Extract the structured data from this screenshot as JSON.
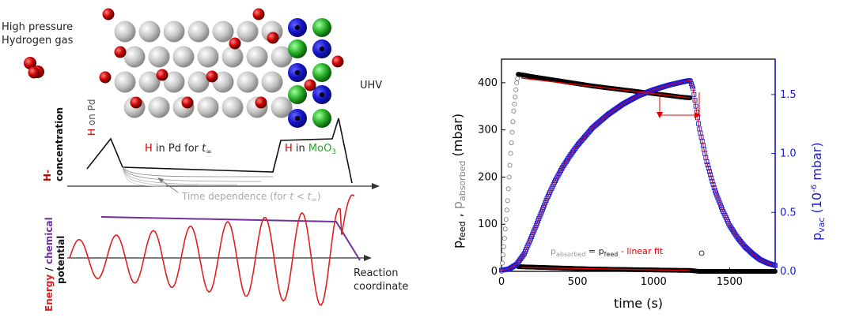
{
  "diagram": {
    "gas_label_line1": "High pressure",
    "gas_label_line2": "Hydrogen gas",
    "uhv_label": "UHV",
    "h_on_pd_h": "H",
    "h_on_pd_rest": " on Pd",
    "h_in_pd_h": "H",
    "h_in_pd_rest": " in Pd for ",
    "t_infinity": "t",
    "t_infinity_sub": "∞",
    "h_in_moo3_h": "H",
    "h_in_moo3_in": " in ",
    "h_in_moo3_moo": "MoO",
    "h_in_moo3_sub": "3",
    "conc_label_line1": "H-",
    "conc_label_line2": "concentration",
    "time_dep_text": "Time dependence (for ",
    "time_dep_t": "t",
    "time_dep_lt": " < ",
    "time_dep_tinf": "t",
    "time_dep_close": ")",
    "energy_word": "Energy",
    "slash": " / ",
    "chemical_word": "chemical",
    "potential_word": "potential",
    "reaction_line1": "Reaction",
    "reaction_line2": "coordinate",
    "colors": {
      "h_red": "#cc0000",
      "pd_grey": "#c8c8c8",
      "mo_blue": "#1414c8",
      "o_green": "#22aa22",
      "purple": "#7030a0",
      "energy_red": "#e02020"
    }
  },
  "chart_data": {
    "type": "scatter",
    "xlabel": "time (s)",
    "ylabel_left_main": "p",
    "ylabel_left_sub1": "feed",
    "ylabel_left_sep": " , ",
    "ylabel_left_p2": "p",
    "ylabel_left_sub2": "absorbed",
    "ylabel_left_unit": " (mbar)",
    "ylabel_right_main": "p",
    "ylabel_right_sub": "vac",
    "ylabel_right_unit_pre": " (10",
    "ylabel_right_unit_exp": "-6",
    "ylabel_right_unit_post": " mbar)",
    "xlim": [
      0,
      1800
    ],
    "ylim_left": [
      0,
      450
    ],
    "ylim_right": [
      0,
      1.8
    ],
    "x_ticks": [
      "0",
      "500",
      "1000",
      "1500"
    ],
    "y_ticks_left": [
      "0",
      "100",
      "200",
      "300",
      "400"
    ],
    "y_ticks_right": [
      "0.0",
      "0.5",
      "1.0",
      "1.5"
    ],
    "annotation_p": "p",
    "annotation_sub1": "absorbed",
    "annotation_eq": " = p",
    "annotation_sub2": "feed",
    "annotation_tail": " - linear fit",
    "series": [
      {
        "axis": "left",
        "color": "#000000",
        "x": [
          0,
          20,
          40,
          60,
          80,
          100,
          110,
          150,
          200,
          300,
          400,
          500,
          600,
          700,
          800,
          900,
          1000,
          1100,
          1200,
          1240
        ],
        "values": [
          0,
          70,
          150,
          250,
          340,
          400,
          418,
          416,
          413,
          408,
          403,
          398,
          393,
          389,
          385,
          381,
          377,
          373,
          369,
          368
        ]
      },
      {
        "axis": "left",
        "color": "#000000",
        "x": [
          110,
          200,
          400,
          600,
          800,
          1000,
          1200,
          1240,
          1300,
          1400,
          1500,
          1600,
          1700,
          1800
        ],
        "values": [
          10,
          9,
          7,
          5,
          4,
          3,
          2,
          2,
          0,
          0,
          0,
          0,
          0,
          0
        ]
      },
      {
        "axis": "right",
        "color": "#1a1ad6",
        "x": [
          0,
          50,
          100,
          150,
          200,
          250,
          300,
          350,
          400,
          450,
          500,
          600,
          700,
          800,
          900,
          1000,
          1100,
          1200,
          1240,
          1260,
          1300,
          1350,
          1400,
          1450,
          1500,
          1550,
          1600,
          1650,
          1700,
          1750,
          1800
        ],
        "values": [
          0.01,
          0.02,
          0.06,
          0.15,
          0.3,
          0.46,
          0.62,
          0.76,
          0.88,
          0.98,
          1.07,
          1.22,
          1.33,
          1.42,
          1.49,
          1.54,
          1.58,
          1.61,
          1.62,
          1.55,
          1.22,
          0.93,
          0.7,
          0.53,
          0.39,
          0.29,
          0.21,
          0.15,
          0.1,
          0.07,
          0.05
        ]
      }
    ],
    "fits": [
      {
        "axis": "left",
        "color": "#e00000",
        "x": [
          130,
          1240
        ],
        "values": [
          410,
          368
        ]
      },
      {
        "axis": "left",
        "color": "#e00000",
        "x": [
          130,
          1240
        ],
        "values": [
          8,
          2
        ]
      }
    ]
  }
}
